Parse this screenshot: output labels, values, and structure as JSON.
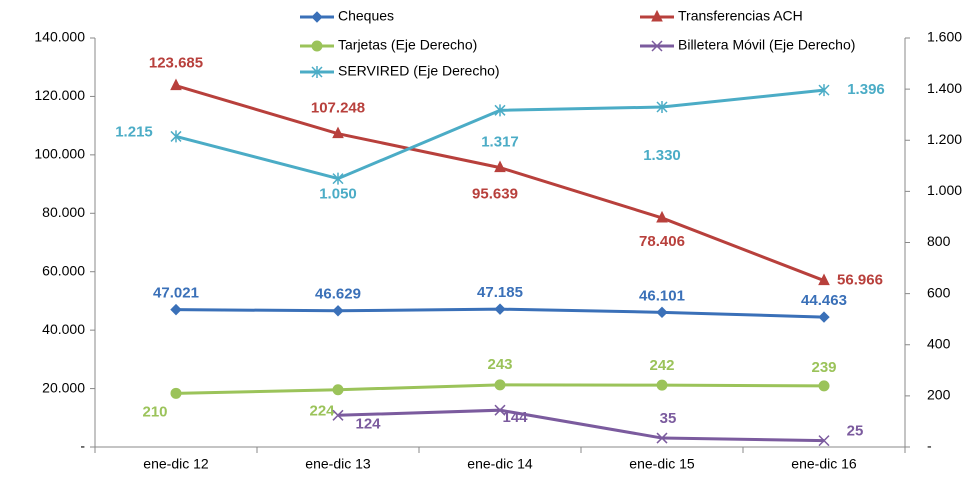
{
  "chart_data": {
    "type": "line",
    "categories": [
      "ene-dic 12",
      "ene-dic 13",
      "ene-dic 14",
      "ene-dic 15",
      "ene-dic 16"
    ],
    "ylim": [
      0,
      140000
    ],
    "yticks": [
      {
        "value": 0,
        "label": "-"
      },
      {
        "value": 20000,
        "label": "20.000"
      },
      {
        "value": 40000,
        "label": "40.000"
      },
      {
        "value": 60000,
        "label": "60.000"
      },
      {
        "value": 80000,
        "label": "80.000"
      },
      {
        "value": 100000,
        "label": "100.000"
      },
      {
        "value": 120000,
        "label": "120.000"
      },
      {
        "value": 140000,
        "label": "140.000"
      }
    ],
    "y2lim": [
      0,
      1600
    ],
    "y2ticks": [
      {
        "value": 0,
        "label": "-"
      },
      200,
      400,
      600,
      800,
      {
        "value": 1000,
        "label": "1.000"
      },
      {
        "value": 1200,
        "label": "1.200"
      },
      {
        "value": 1400,
        "label": "1.400"
      },
      {
        "value": 1600,
        "label": "1.600"
      }
    ],
    "series": [
      {
        "name": "Cheques",
        "color": "#3a70b8",
        "marker": "diamond",
        "values": [
          47021,
          46629,
          47185,
          46101,
          44463
        ],
        "value_labels": [
          "47.021",
          "46.629",
          "47.185",
          "46.101",
          "44.463"
        ]
      },
      {
        "name": "Transferencias ACH",
        "color": "#b8403c",
        "marker": "triangle",
        "values": [
          123685,
          107248,
          95639,
          78406,
          56966
        ],
        "value_labels": [
          "123.685",
          "107.248",
          "95.639",
          "78.406",
          "56.966"
        ]
      },
      {
        "name": "Tarjetas (Eje Derecho)",
        "color": "#9bc35a",
        "marker": "circle",
        "axis": "y2",
        "values": [
          210,
          224,
          243,
          242,
          239
        ]
      },
      {
        "name": "Billetera Móvil (Eje Derecho)",
        "color": "#7b5b9e",
        "marker": "x",
        "axis": "y2",
        "values": [
          null,
          124,
          144,
          35,
          25
        ]
      },
      {
        "name": "SERVIRED (Eje Derecho)",
        "color": "#4bacc6",
        "marker": "star",
        "axis": "y2",
        "values": [
          1215,
          1050,
          1317,
          1330,
          1396
        ],
        "value_labels": [
          "1.215",
          "1.050",
          "1.317",
          "1.330",
          "1.396"
        ]
      }
    ]
  }
}
